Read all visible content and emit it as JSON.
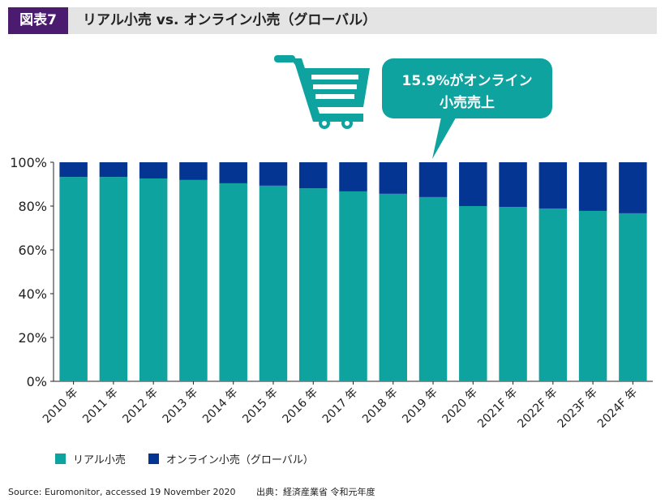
{
  "header": {
    "figure_label": "図表7",
    "title": "リアル小売 vs. オンライン小売（グローバル）"
  },
  "callout": {
    "line1": "15.9%がオンライン",
    "line2": "小売売上",
    "icon": "shopping-cart-icon"
  },
  "colors": {
    "real": "#0fa3a0",
    "online": "#043592",
    "header_label_bg": "#4a1b6e",
    "header_bg": "#e4e4e4"
  },
  "chart_data": {
    "type": "bar",
    "stacked": true,
    "title": "リアル小売 vs. オンライン小売（グローバル）",
    "xlabel": "",
    "ylabel": "",
    "ylim": [
      0,
      100
    ],
    "yticks": [
      "0%",
      "20%",
      "40%",
      "60%",
      "80%",
      "100%"
    ],
    "ytick_values": [
      0,
      20,
      40,
      60,
      80,
      100
    ],
    "categories": [
      "2010 年",
      "2011 年",
      "2012 年",
      "2013 年",
      "2014 年",
      "2015 年",
      "2016 年",
      "2017 年",
      "2018 年",
      "2019 年",
      "2020 年",
      "2021F 年",
      "2022F 年",
      "2023F 年",
      "2024F 年"
    ],
    "series": [
      {
        "name": "リアル小売",
        "values": [
          93.3,
          93.3,
          92.6,
          91.9,
          90.4,
          89.3,
          88.1,
          86.7,
          85.6,
          84.1,
          80.0,
          79.6,
          78.9,
          77.8,
          76.7
        ]
      },
      {
        "name": "オンライン小売（グローバル）",
        "values": [
          6.7,
          6.7,
          7.4,
          8.1,
          9.6,
          10.7,
          11.9,
          13.3,
          14.4,
          15.9,
          20.0,
          20.4,
          21.1,
          22.2,
          23.3
        ]
      }
    ],
    "legend": [
      "リアル小売",
      "オンライン小売（グローバル）"
    ],
    "legend_position": "bottom-left",
    "grid": false,
    "annotation": "15.9%がオンライン小売売上"
  },
  "footer": {
    "source": "Source: Euromonitor, accessed 19 November 2020",
    "citation": "出典：経済産業省 令和元年度"
  }
}
